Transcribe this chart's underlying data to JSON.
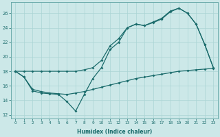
{
  "xlabel": "Humidex (Indice chaleur)",
  "xlim": [
    -0.5,
    23.5
  ],
  "ylim": [
    11.5,
    27.5
  ],
  "yticks": [
    12,
    14,
    16,
    18,
    20,
    22,
    24,
    26
  ],
  "xticks": [
    0,
    1,
    2,
    3,
    4,
    5,
    6,
    7,
    8,
    9,
    10,
    11,
    12,
    13,
    14,
    15,
    16,
    17,
    18,
    19,
    20,
    21,
    22,
    23
  ],
  "background_color": "#cce8e8",
  "grid_color": "#aad4d4",
  "line_color": "#1a6b6b",
  "curve_top_x": [
    0,
    1,
    2,
    3,
    4,
    5,
    6,
    7,
    8,
    9,
    10,
    11,
    12,
    13,
    14,
    15,
    16,
    17,
    18,
    19,
    20,
    21,
    22,
    23
  ],
  "curve_top_y": [
    18.0,
    18.0,
    18.0,
    18.0,
    18.0,
    18.0,
    18.0,
    18.0,
    18.2,
    18.5,
    19.5,
    21.5,
    22.5,
    24.0,
    24.5,
    24.3,
    24.8,
    25.3,
    26.3,
    26.7,
    26.0,
    24.5,
    21.7,
    18.5
  ],
  "curve_mid_x": [
    0,
    1,
    2,
    3,
    4,
    5,
    6,
    7,
    8,
    9,
    10,
    11,
    12,
    13,
    14,
    15,
    16,
    17,
    18,
    19,
    20,
    21,
    22,
    23
  ],
  "curve_mid_y": [
    18.0,
    17.2,
    15.3,
    15.0,
    14.9,
    14.8,
    13.8,
    12.5,
    14.8,
    17.0,
    18.5,
    21.0,
    22.0,
    24.0,
    24.5,
    24.3,
    24.7,
    25.2,
    26.2,
    26.7,
    26.0,
    24.5,
    21.7,
    18.5
  ],
  "curve_bot_x": [
    0,
    1,
    2,
    3,
    4,
    5,
    6,
    7,
    8,
    9,
    10,
    11,
    12,
    13,
    14,
    15,
    16,
    17,
    18,
    19,
    20,
    21,
    22,
    23
  ],
  "curve_bot_y": [
    18.0,
    17.2,
    15.5,
    15.2,
    15.0,
    14.9,
    14.8,
    15.0,
    15.2,
    15.5,
    15.8,
    16.1,
    16.4,
    16.7,
    17.0,
    17.2,
    17.4,
    17.6,
    17.8,
    18.0,
    18.1,
    18.2,
    18.3,
    18.4
  ]
}
